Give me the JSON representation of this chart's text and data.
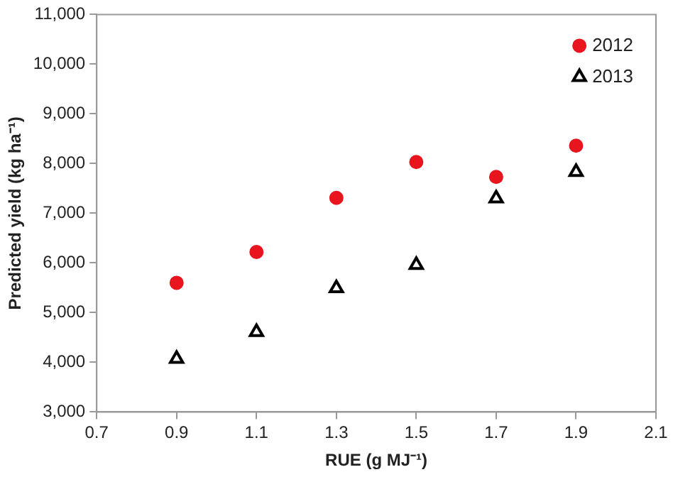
{
  "chart_data": {
    "type": "scatter",
    "xlabel": "RUE (g MJ⁻¹)",
    "ylabel": "Predicted yield (kg ha⁻¹)",
    "xlim": [
      0.7,
      2.1
    ],
    "xticks": [
      0.7,
      0.9,
      1.1,
      1.3,
      1.5,
      1.7,
      1.9,
      2.1
    ],
    "ylim": [
      3000,
      11000
    ],
    "yticks": [
      {
        "value": 3000,
        "label": "3,000"
      },
      {
        "value": 4000,
        "label": "4,000"
      },
      {
        "value": 5000,
        "label": "5,000"
      },
      {
        "value": 6000,
        "label": "6,000"
      },
      {
        "value": 7000,
        "label": "7,000"
      },
      {
        "value": 8000,
        "label": "8,000"
      },
      {
        "value": 9000,
        "label": "9,000"
      },
      {
        "value": 10000,
        "label": "10,000"
      },
      {
        "value": 11000,
        "label": "11,000"
      }
    ],
    "x": [
      0.9,
      1.1,
      1.3,
      1.5,
      1.7,
      1.9
    ],
    "series": [
      {
        "name": "2012",
        "color": "#e8141e",
        "marker": "circle",
        "values": [
          5600,
          6220,
          7310,
          8030,
          7730,
          8360
        ]
      },
      {
        "name": "2013",
        "color": "#000000",
        "marker": "triangle",
        "values": [
          4070,
          4610,
          5490,
          5960,
          7300,
          7830
        ]
      }
    ],
    "grid": false,
    "legend": "top right"
  }
}
